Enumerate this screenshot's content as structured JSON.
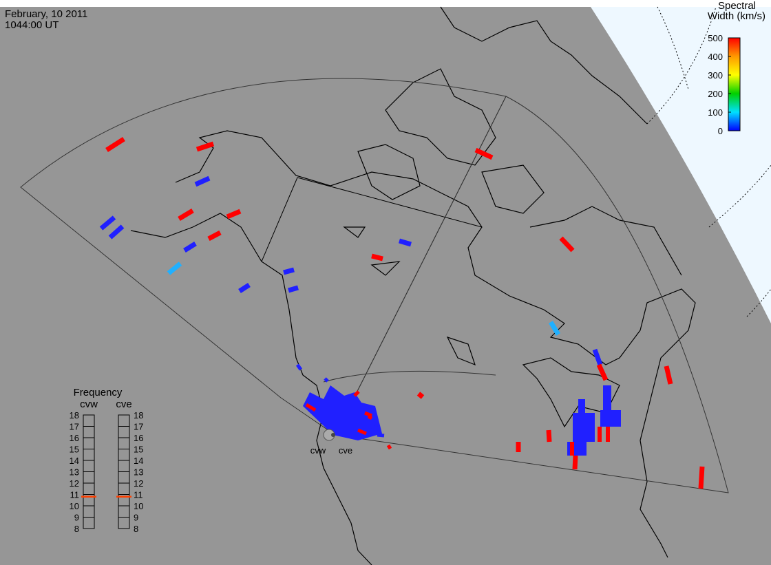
{
  "header": {
    "date": "February, 10 2011",
    "time": "1044:00 UT"
  },
  "colorbar": {
    "title": [
      "Spectral",
      "Width (km/s)"
    ],
    "lim": [
      0,
      500
    ],
    "ticks": [
      0,
      100,
      200,
      300,
      400,
      500
    ]
  },
  "frequency": {
    "title": "Frequency",
    "lim": [
      8,
      18
    ],
    "radars": [
      {
        "name": "cvw",
        "ticks": [
          8,
          9,
          10,
          11,
          12,
          13,
          14,
          15,
          16,
          17,
          18
        ],
        "value": 10.8
      },
      {
        "name": "cve",
        "ticks": [
          8,
          9,
          10,
          11,
          12,
          13,
          14,
          15,
          16,
          17,
          18
        ],
        "value": 10.8
      }
    ]
  },
  "stations": [
    "cvw",
    "cve"
  ]
}
